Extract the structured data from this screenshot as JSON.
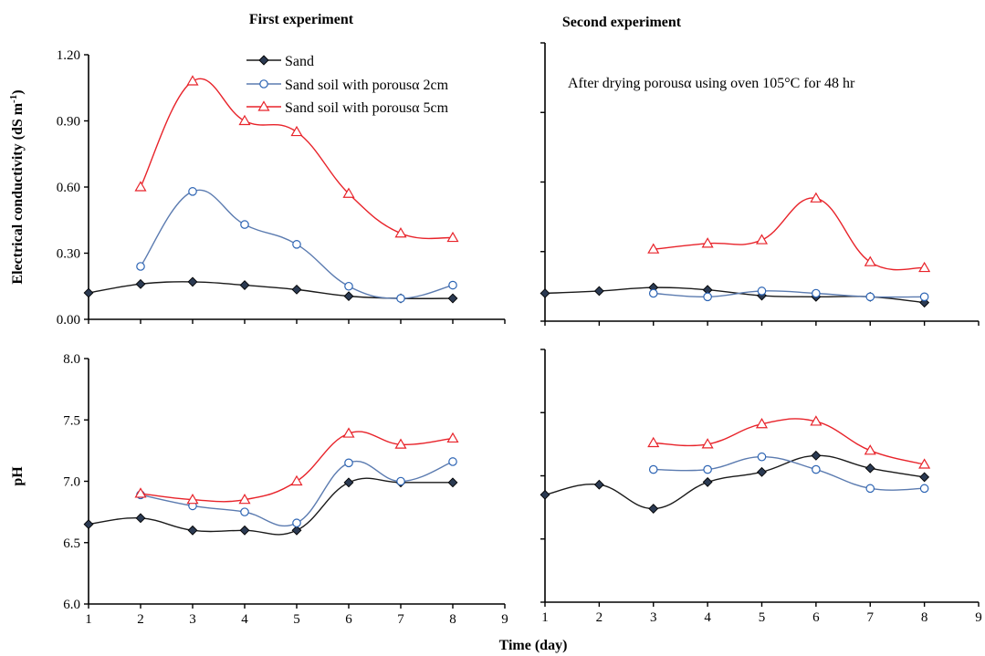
{
  "figure": {
    "xlabel": "Time (day)",
    "panel_titles": [
      "First experiment",
      "Second experiment"
    ],
    "row_ylabels": [
      "Electrical conductivity (dS m-1)",
      "pH"
    ],
    "annotation": "After drying porousα using oven 105°C for 48 hr"
  },
  "legend": [
    {
      "label": "Sand",
      "color": "#1a1a1a",
      "marker": "diamond"
    },
    {
      "label": "Sand soil with porousα 2cm",
      "color": "#5b7bb0",
      "marker": "circle"
    },
    {
      "label": "Sand soil with porousα 5cm",
      "color": "#e8232a",
      "marker": "triangle"
    }
  ],
  "chart_data": [
    {
      "type": "line",
      "title": "First experiment",
      "xlabel": "",
      "ylabel": "Electrical conductivity (dS m-1)",
      "xlim": [
        1,
        9
      ],
      "ylim": [
        0,
        1.2
      ],
      "xticks": [
        "1",
        "2",
        "3",
        "4",
        "5",
        "6",
        "7",
        "8",
        "9"
      ],
      "yticks": [
        "0.00",
        "0.30",
        "0.60",
        "0.90",
        "1.20"
      ],
      "show_xtick_labels": false,
      "show_yticks": true,
      "series": [
        {
          "name": "Sand",
          "color": "#1a1a1a",
          "marker": "diamond",
          "x": [
            1,
            2,
            3,
            4,
            5,
            6,
            7,
            8
          ],
          "y": [
            0.12,
            0.16,
            0.17,
            0.155,
            0.135,
            0.105,
            0.095,
            0.095
          ]
        },
        {
          "name": "Sand soil with porousα 2cm",
          "color": "#5b7bb0",
          "marker": "circle",
          "x": [
            2,
            3,
            4,
            5,
            6,
            7,
            8
          ],
          "y": [
            0.24,
            0.58,
            0.43,
            0.34,
            0.15,
            0.095,
            0.155
          ]
        },
        {
          "name": "Sand soil with porousα 5cm",
          "color": "#e8232a",
          "marker": "triangle",
          "x": [
            2,
            3,
            4,
            5,
            6,
            7,
            8
          ],
          "y": [
            0.6,
            1.08,
            0.9,
            0.85,
            0.57,
            0.39,
            0.37
          ]
        }
      ]
    },
    {
      "type": "line",
      "title": "Second experiment",
      "xlabel": "",
      "ylabel": "",
      "xlim": [
        1,
        9
      ],
      "ylim": [
        0,
        1.2
      ],
      "xticks": [
        "1",
        "2",
        "3",
        "4",
        "5",
        "6",
        "7",
        "8",
        "9"
      ],
      "yticks": [
        "0.00",
        "0.30",
        "0.60",
        "0.90",
        "1.20"
      ],
      "show_xtick_labels": false,
      "show_yticks": false,
      "series": [
        {
          "name": "Sand",
          "color": "#1a1a1a",
          "marker": "diamond",
          "x": [
            1,
            2,
            3,
            4,
            5,
            6,
            7,
            8
          ],
          "y": [
            0.12,
            0.13,
            0.145,
            0.135,
            0.11,
            0.105,
            0.105,
            0.08
          ]
        },
        {
          "name": "Sand soil with porousα 2cm",
          "color": "#5b7bb0",
          "marker": "circle",
          "x": [
            3,
            4,
            5,
            6,
            7,
            8
          ],
          "y": [
            0.12,
            0.105,
            0.13,
            0.12,
            0.105,
            0.105
          ]
        },
        {
          "name": "Sand soil with porousα 5cm",
          "color": "#e8232a",
          "marker": "triangle",
          "x": [
            3,
            4,
            5,
            6,
            7,
            8
          ],
          "y": [
            0.31,
            0.335,
            0.35,
            0.53,
            0.255,
            0.23
          ]
        }
      ]
    },
    {
      "type": "line",
      "title": "",
      "xlabel": "",
      "ylabel": "pH",
      "xlim": [
        1,
        9
      ],
      "ylim": [
        6.0,
        8.0
      ],
      "xticks": [
        "1",
        "2",
        "3",
        "4",
        "5",
        "6",
        "7",
        "8",
        "9"
      ],
      "yticks": [
        "6.0",
        "6.5",
        "7.0",
        "7.5",
        "8.0"
      ],
      "show_xtick_labels": true,
      "show_yticks": true,
      "series": [
        {
          "name": "Sand",
          "color": "#1a1a1a",
          "marker": "diamond",
          "x": [
            1,
            2,
            3,
            4,
            5,
            6,
            7,
            8
          ],
          "y": [
            6.65,
            6.7,
            6.6,
            6.6,
            6.6,
            6.99,
            6.99,
            6.99
          ]
        },
        {
          "name": "Sand soil with porousα 2cm",
          "color": "#5b7bb0",
          "marker": "circle",
          "x": [
            2,
            3,
            4,
            5,
            6,
            7,
            8
          ],
          "y": [
            6.89,
            6.8,
            6.75,
            6.66,
            7.15,
            7.0,
            7.16
          ]
        },
        {
          "name": "Sand soil with porousα 5cm",
          "color": "#e8232a",
          "marker": "triangle",
          "x": [
            2,
            3,
            4,
            5,
            6,
            7,
            8
          ],
          "y": [
            6.9,
            6.85,
            6.85,
            7.0,
            7.39,
            7.3,
            7.35
          ]
        }
      ]
    },
    {
      "type": "line",
      "title": "",
      "xlabel": "",
      "ylabel": "",
      "xlim": [
        1,
        9
      ],
      "ylim": [
        6.0,
        8.0
      ],
      "xticks": [
        "1",
        "2",
        "3",
        "4",
        "5",
        "6",
        "7",
        "8",
        "9"
      ],
      "yticks": [
        "6.0",
        "6.5",
        "7.0",
        "7.5",
        "8.0"
      ],
      "show_xtick_labels": true,
      "show_yticks": false,
      "series": [
        {
          "name": "Sand",
          "color": "#1a1a1a",
          "marker": "diamond",
          "x": [
            1,
            2,
            3,
            4,
            5,
            6,
            7,
            8
          ],
          "y": [
            6.85,
            6.93,
            6.74,
            6.95,
            7.03,
            7.16,
            7.06,
            6.99
          ]
        },
        {
          "name": "Sand soil with porousα 2cm",
          "color": "#5b7bb0",
          "marker": "circle",
          "x": [
            3,
            4,
            5,
            6,
            7,
            8
          ],
          "y": [
            7.05,
            7.05,
            7.15,
            7.05,
            6.9,
            6.9
          ]
        },
        {
          "name": "Sand soil with porousα 5cm",
          "color": "#e8232a",
          "marker": "triangle",
          "x": [
            3,
            4,
            5,
            6,
            7,
            8
          ],
          "y": [
            7.26,
            7.25,
            7.41,
            7.43,
            7.2,
            7.09
          ]
        }
      ]
    }
  ]
}
